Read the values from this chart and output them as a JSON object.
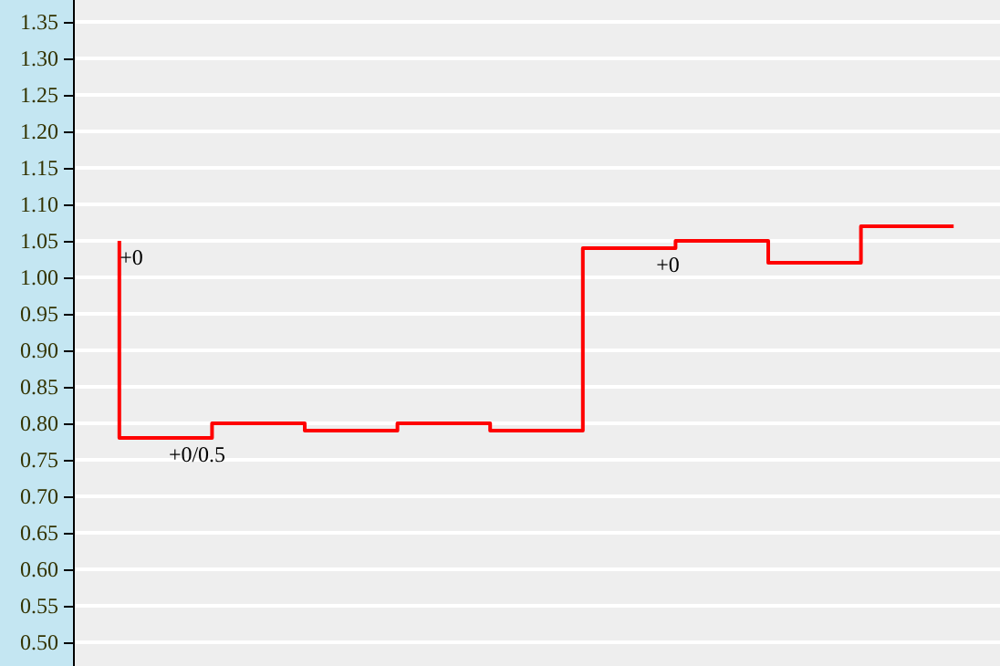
{
  "chart_data": {
    "type": "step",
    "categories": [
      null,
      null,
      null,
      null,
      null,
      null,
      null,
      null,
      null,
      null
    ],
    "values": [
      1.05,
      0.78,
      0.8,
      0.79,
      0.8,
      0.79,
      1.04,
      1.05,
      1.02,
      1.07
    ],
    "color": "#ff0000",
    "marker": "none",
    "ylim": [
      0.4675,
      1.38
    ],
    "yticks": [
      {
        "value": 0.5,
        "label": "0.50"
      },
      0.55,
      {
        "value": 0.6,
        "label": "0.60"
      },
      0.65,
      {
        "value": 0.7,
        "label": "0.70"
      },
      0.75,
      {
        "value": 0.8,
        "label": "0.80"
      },
      0.85,
      {
        "value": 0.9,
        "label": "0.90"
      },
      0.95,
      {
        "value": 1.0,
        "label": "1.00"
      },
      1.05,
      {
        "value": 1.1,
        "label": "1.10"
      },
      1.15,
      {
        "value": 1.2,
        "label": "1.20"
      },
      1.25,
      {
        "value": 1.3,
        "label": "1.30"
      },
      1.35
    ],
    "tick_labels": "y",
    "grid": "y",
    "annotations": [
      "+0",
      "+0/0.5",
      "+0"
    ]
  }
}
